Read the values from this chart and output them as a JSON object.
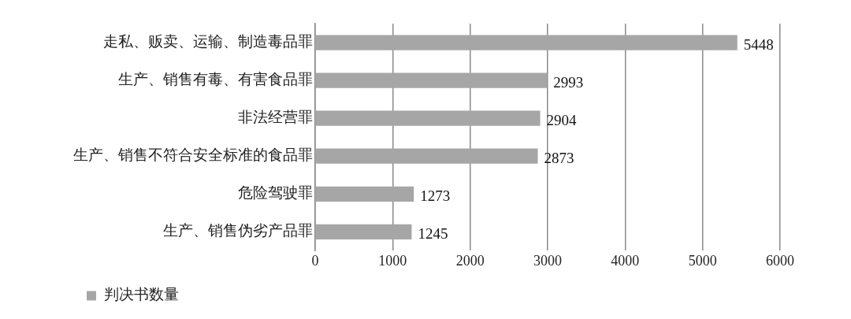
{
  "chart_data": {
    "type": "bar",
    "orientation": "horizontal",
    "categories": [
      "走私、贩卖、运输、制造毒品罪",
      "生产、销售有毒、有害食品罪",
      "非法经营罪",
      "生产、销售不符合安全标准的食品罪",
      "危险驾驶罪",
      "生产、销售伪劣产品罪"
    ],
    "series": [
      {
        "name": "判决书数量",
        "color": "#a6a6a6",
        "values": [
          5448,
          2993,
          2904,
          2873,
          1273,
          1245
        ]
      }
    ],
    "xlim": [
      0,
      6000
    ],
    "xticks": [
      0,
      1000,
      2000,
      3000,
      4000,
      5000,
      6000
    ],
    "grid": "x",
    "legend": "bottom",
    "data_labels": true
  }
}
